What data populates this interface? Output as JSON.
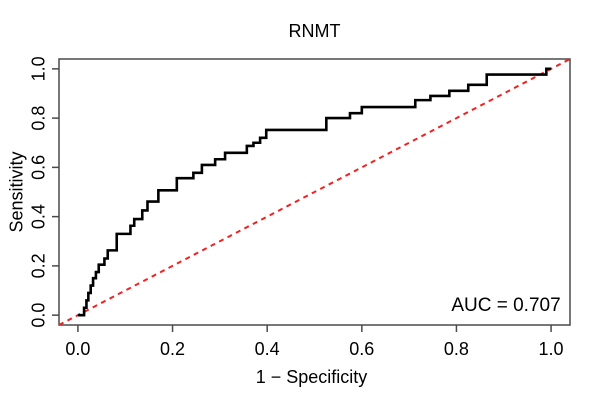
{
  "title": "RNMT",
  "annotation": {
    "auc_text": "AUC = 0.707"
  },
  "chart_data": {
    "type": "line",
    "subtype": "roc-step-curve",
    "title": "RNMT",
    "xlabel": "1 − Specificity",
    "ylabel": "Sensitivity",
    "xlim": [
      0,
      1
    ],
    "ylim": [
      0,
      1
    ],
    "grid": false,
    "background": "#ffffff",
    "axis_color": "#4a4a4a",
    "x_ticks": [
      0.0,
      0.2,
      0.4,
      0.6,
      0.8,
      1.0
    ],
    "x_tick_labels": [
      "0.0",
      "0.2",
      "0.4",
      "0.6",
      "0.8",
      "1.0"
    ],
    "y_ticks": [
      0.0,
      0.2,
      0.4,
      0.6,
      0.8,
      1.0
    ],
    "y_tick_labels": [
      "0.0",
      "0.2",
      "0.4",
      "0.6",
      "0.8",
      "1.0"
    ],
    "auc": 0.707,
    "auc_text": "AUC = 0.707",
    "reference_line": {
      "name": "chance-diagonal",
      "color": "#f02222",
      "style": "dashed",
      "from": [
        0,
        0
      ],
      "to": [
        1,
        1
      ],
      "extends_to_plot_corners": true
    },
    "series": [
      {
        "name": "ROC curve",
        "color": "#000000",
        "line_width": 2.6,
        "points": [
          [
            0.0,
            0.0
          ],
          [
            0.013,
            0.0
          ],
          [
            0.013,
            0.03
          ],
          [
            0.018,
            0.03
          ],
          [
            0.018,
            0.06
          ],
          [
            0.022,
            0.06
          ],
          [
            0.022,
            0.09
          ],
          [
            0.027,
            0.09
          ],
          [
            0.027,
            0.12
          ],
          [
            0.032,
            0.12
          ],
          [
            0.032,
            0.15
          ],
          [
            0.038,
            0.15
          ],
          [
            0.038,
            0.175
          ],
          [
            0.044,
            0.175
          ],
          [
            0.044,
            0.205
          ],
          [
            0.056,
            0.205
          ],
          [
            0.056,
            0.23
          ],
          [
            0.063,
            0.23
          ],
          [
            0.063,
            0.263
          ],
          [
            0.082,
            0.263
          ],
          [
            0.082,
            0.33
          ],
          [
            0.111,
            0.33
          ],
          [
            0.111,
            0.363
          ],
          [
            0.119,
            0.363
          ],
          [
            0.119,
            0.39
          ],
          [
            0.136,
            0.39
          ],
          [
            0.136,
            0.425
          ],
          [
            0.147,
            0.425
          ],
          [
            0.147,
            0.461
          ],
          [
            0.17,
            0.461
          ],
          [
            0.17,
            0.507
          ],
          [
            0.209,
            0.507
          ],
          [
            0.209,
            0.556
          ],
          [
            0.244,
            0.556
          ],
          [
            0.244,
            0.578
          ],
          [
            0.262,
            0.578
          ],
          [
            0.262,
            0.61
          ],
          [
            0.29,
            0.61
          ],
          [
            0.29,
            0.633
          ],
          [
            0.311,
            0.633
          ],
          [
            0.311,
            0.659
          ],
          [
            0.357,
            0.659
          ],
          [
            0.357,
            0.687
          ],
          [
            0.371,
            0.687
          ],
          [
            0.371,
            0.7
          ],
          [
            0.385,
            0.7
          ],
          [
            0.385,
            0.72
          ],
          [
            0.398,
            0.72
          ],
          [
            0.398,
            0.752
          ],
          [
            0.525,
            0.752
          ],
          [
            0.525,
            0.8
          ],
          [
            0.575,
            0.8
          ],
          [
            0.575,
            0.82
          ],
          [
            0.6,
            0.82
          ],
          [
            0.6,
            0.845
          ],
          [
            0.713,
            0.845
          ],
          [
            0.713,
            0.873
          ],
          [
            0.745,
            0.873
          ],
          [
            0.745,
            0.89
          ],
          [
            0.785,
            0.89
          ],
          [
            0.785,
            0.911
          ],
          [
            0.825,
            0.911
          ],
          [
            0.825,
            0.935
          ],
          [
            0.864,
            0.935
          ],
          [
            0.864,
            0.977
          ],
          [
            0.99,
            0.977
          ],
          [
            0.99,
            1.0
          ],
          [
            1.0,
            1.0
          ]
        ]
      }
    ]
  }
}
